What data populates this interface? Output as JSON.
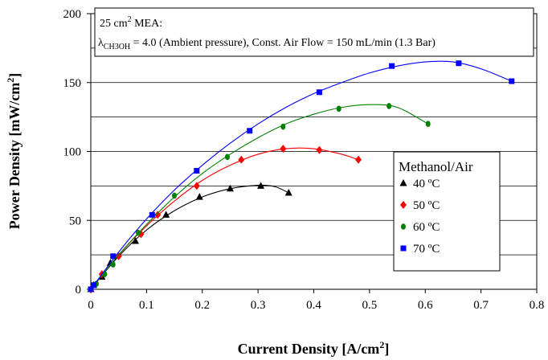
{
  "chart_data": {
    "type": "line",
    "xlabel": "Current Density [A/cm",
    "xlabel_sup": "2",
    "xlabel_end": "]",
    "ylabel": "Power Density  [mW/cm",
    "ylabel_sup": "2",
    "ylabel_end": "]",
    "xlim": [
      0,
      0.8
    ],
    "ylim": [
      0,
      200
    ],
    "xticks": [
      "0",
      "0.1",
      "0.2",
      "0.3",
      "0.4",
      "0.5",
      "0.6",
      "0.7",
      "0.8"
    ],
    "yticks": [
      "0",
      "50",
      "100",
      "150",
      "200"
    ],
    "grid": "horizontal",
    "annotation": {
      "line1_a": "25 cm",
      "line1_sup": "2",
      "line1_b": " MEA:",
      "line2_lambda": "λ",
      "line2_sub": "CH3OH",
      "line2_rest": " = 4.0 (Ambient pressure), Const. Air Flow = 150 mL/min (1.3 Bar)"
    },
    "legend": {
      "title": "Methanol/Air",
      "position": "right"
    },
    "series": [
      {
        "name": "40 ºC",
        "color": "#000000",
        "marker": "triangle",
        "x": [
          0,
          0.005,
          0.02,
          0.035,
          0.08,
          0.135,
          0.195,
          0.25,
          0.305,
          0.355
        ],
        "y": [
          0,
          3,
          9,
          19,
          35,
          54,
          67,
          73,
          75,
          70
        ],
        "fit": [
          [
            0,
            0
          ],
          [
            0.05,
            24
          ],
          [
            0.1,
            43
          ],
          [
            0.15,
            57
          ],
          [
            0.2,
            67
          ],
          [
            0.25,
            73
          ],
          [
            0.3,
            75.5
          ],
          [
            0.33,
            74.5
          ],
          [
            0.355,
            70
          ]
        ]
      },
      {
        "name": "50 ºC",
        "color": "#ff0000",
        "marker": "diamond",
        "x": [
          0,
          0.02,
          0.05,
          0.09,
          0.12,
          0.19,
          0.27,
          0.345,
          0.41,
          0.48
        ],
        "y": [
          0,
          11,
          24,
          40,
          54,
          75,
          94,
          102,
          101,
          94
        ],
        "fit": [
          [
            0,
            0
          ],
          [
            0.05,
            25
          ],
          [
            0.1,
            46
          ],
          [
            0.15,
            64
          ],
          [
            0.2,
            79
          ],
          [
            0.25,
            90
          ],
          [
            0.3,
            98
          ],
          [
            0.35,
            102
          ],
          [
            0.4,
            102
          ],
          [
            0.45,
            98
          ],
          [
            0.48,
            94
          ]
        ]
      },
      {
        "name": "60 ºC",
        "color": "#008000",
        "marker": "circle",
        "x": [
          0,
          0.01,
          0.025,
          0.04,
          0.085,
          0.15,
          0.245,
          0.345,
          0.445,
          0.535,
          0.605
        ],
        "y": [
          0,
          4,
          11,
          18,
          41,
          68,
          96,
          118,
          131,
          133,
          120
        ],
        "fit": [
          [
            0,
            0
          ],
          [
            0.05,
            25
          ],
          [
            0.1,
            47
          ],
          [
            0.15,
            67
          ],
          [
            0.2,
            84
          ],
          [
            0.25,
            98
          ],
          [
            0.3,
            110
          ],
          [
            0.35,
            120
          ],
          [
            0.4,
            127
          ],
          [
            0.45,
            132
          ],
          [
            0.5,
            134
          ],
          [
            0.55,
            132
          ],
          [
            0.605,
            120
          ]
        ]
      },
      {
        "name": "70 ºC",
        "color": "#0000ff",
        "marker": "square",
        "x": [
          0,
          0.005,
          0.04,
          0.11,
          0.19,
          0.285,
          0.41,
          0.54,
          0.66,
          0.755
        ],
        "y": [
          0,
          3,
          24,
          54,
          86,
          115,
          143,
          162,
          164,
          151
        ],
        "fit": [
          [
            0,
            0
          ],
          [
            0.05,
            27
          ],
          [
            0.1,
            51
          ],
          [
            0.15,
            72
          ],
          [
            0.2,
            90
          ],
          [
            0.25,
            106
          ],
          [
            0.3,
            120
          ],
          [
            0.35,
            132
          ],
          [
            0.4,
            142
          ],
          [
            0.45,
            150
          ],
          [
            0.5,
            157
          ],
          [
            0.55,
            162
          ],
          [
            0.6,
            165
          ],
          [
            0.65,
            165
          ],
          [
            0.7,
            160
          ],
          [
            0.755,
            151
          ]
        ]
      }
    ]
  }
}
